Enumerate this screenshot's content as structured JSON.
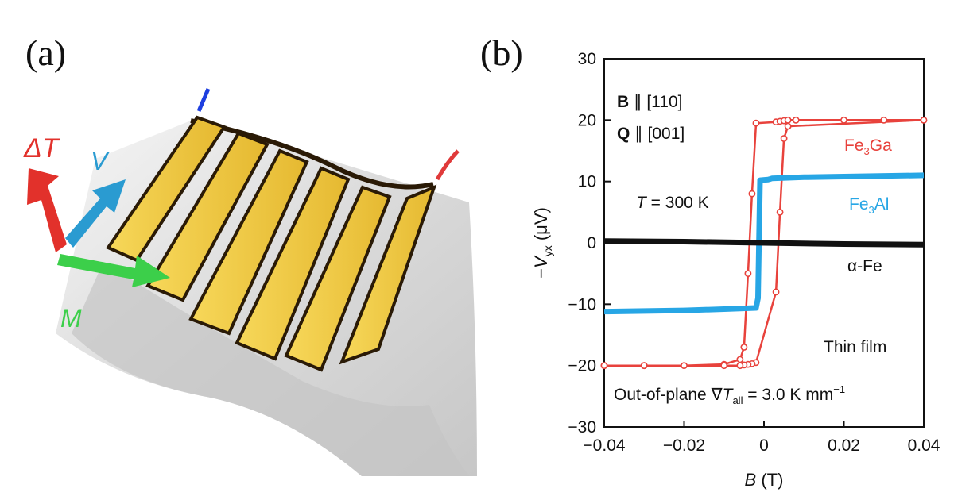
{
  "panel_a": {
    "label": "(a)",
    "arrows": {
      "delta_t": {
        "label": "ΔT",
        "color": "#e2312b"
      },
      "v": {
        "label": "V",
        "color": "#2a9bd1"
      },
      "m": {
        "label": "M",
        "color": "#3ccf4a"
      }
    },
    "colors": {
      "stripe": "#f3cc44",
      "stripe_edge": "#2a1a06",
      "substrate": "#cfcfcf"
    }
  },
  "panel_b": {
    "label": "(b)",
    "annotations": {
      "b_dir_bold": "B",
      "b_dir_rest": " ∥ [110]",
      "q_dir_bold": "Q",
      "q_dir_rest": " ∥ [001]",
      "temp_italic": "T",
      "temp_rest": " = 300 K",
      "film": "Thin film",
      "grad_prefix": "Out-of-plane ∇",
      "grad_italic": "T",
      "grad_sub": "all",
      "grad_value": " = 3.0 K mm",
      "grad_exp": "−1"
    },
    "series_labels": {
      "fe3ga_main": "Fe",
      "fe3ga_sub": "3",
      "fe3ga_tail": "Ga",
      "fe3al_main": "Fe",
      "fe3al_sub": "3",
      "fe3al_tail": "Al",
      "afe": "α-Fe"
    }
  },
  "chart_data": {
    "type": "line",
    "xlabel_italic": "B",
    "xlabel_rest": " (T)",
    "ylabel_prefix": "−",
    "ylabel_italic": "V",
    "ylabel_sub": "yx",
    "ylabel_rest": " (μV)",
    "xlim": [
      -0.04,
      0.04
    ],
    "ylim": [
      -30,
      30
    ],
    "xticks": [
      -0.04,
      -0.02,
      0,
      0.02,
      0.04
    ],
    "xtick_labels": [
      "−0.04",
      "−0.02",
      "0",
      "0.02",
      "0.04"
    ],
    "yticks": [
      -30,
      -20,
      -10,
      0,
      10,
      20,
      30
    ],
    "ytick_labels": [
      "−30",
      "−20",
      "−10",
      "0",
      "10",
      "20",
      "30"
    ],
    "grid": false,
    "series": [
      {
        "color": "#e8423c",
        "style": "open-circles",
        "x": [
          -0.04,
          -0.03,
          -0.02,
          -0.01,
          -0.006,
          -0.005,
          -0.004,
          -0.003,
          -0.002,
          0.003,
          0.004,
          0.005,
          0.006,
          0.008,
          0.02,
          0.03,
          0.04,
          0.006,
          0.005,
          0.004,
          0.003,
          -0.002,
          -0.003,
          -0.004,
          -0.005,
          -0.006,
          -0.01,
          -0.03,
          -0.04
        ],
        "y": [
          -20,
          -20,
          -20,
          -19.8,
          -19,
          -17,
          -5,
          8,
          19.5,
          19.7,
          19.8,
          19.9,
          20,
          20,
          20,
          20,
          20,
          19,
          17,
          5,
          -8,
          -19.5,
          -19.7,
          -19.8,
          -19.9,
          -20,
          -20,
          -20,
          -20
        ]
      },
      {
        "color": "#27a6e5",
        "style": "thick-line",
        "x": [
          -0.04,
          -0.02,
          -0.01,
          -0.002,
          -0.0015,
          -0.001,
          0.001,
          0.0015,
          0.002,
          0.01,
          0.02,
          0.04
        ],
        "y": [
          -11.2,
          -11,
          -10.8,
          -10.6,
          -9,
          10.2,
          10.3,
          10.4,
          10.5,
          10.7,
          10.8,
          11
        ]
      },
      {
        "color": "#111111",
        "style": "thick-line",
        "x": [
          -0.04,
          -0.02,
          0,
          0.02,
          0.04
        ],
        "y": [
          0.3,
          0.2,
          0,
          -0.2,
          -0.3
        ]
      }
    ]
  }
}
